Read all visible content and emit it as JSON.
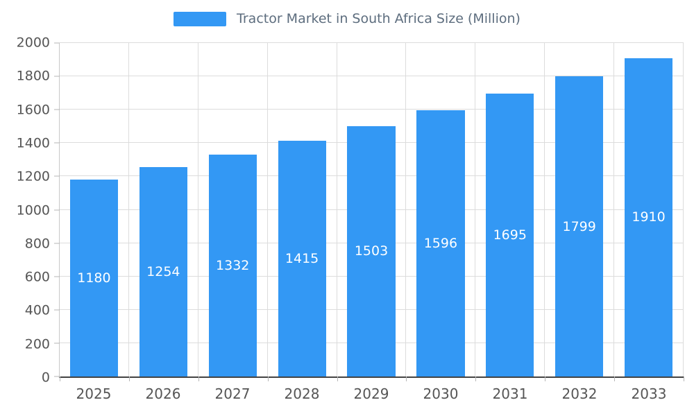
{
  "chart_data": {
    "type": "bar",
    "title": "Tractor Market in South Africa Size (Million)",
    "categories": [
      "2025",
      "2026",
      "2027",
      "2028",
      "2029",
      "2030",
      "2031",
      "2032",
      "2033"
    ],
    "values": [
      1180,
      1254,
      1332,
      1415,
      1503,
      1596,
      1695,
      1799,
      1910
    ],
    "xlabel": "",
    "ylabel": "",
    "ylim": [
      0,
      2000
    ],
    "yticks": [
      0,
      200,
      400,
      600,
      800,
      1000,
      1200,
      1400,
      1600,
      1800,
      2000
    ],
    "grid": true,
    "legend_position": "top",
    "colors": {
      "bar": "#3398f4",
      "value_label": "#ffffff",
      "grid": "#dcdcdc",
      "axis": "#424242",
      "tick_label": "#555555",
      "title": "#5d6d7e"
    }
  }
}
